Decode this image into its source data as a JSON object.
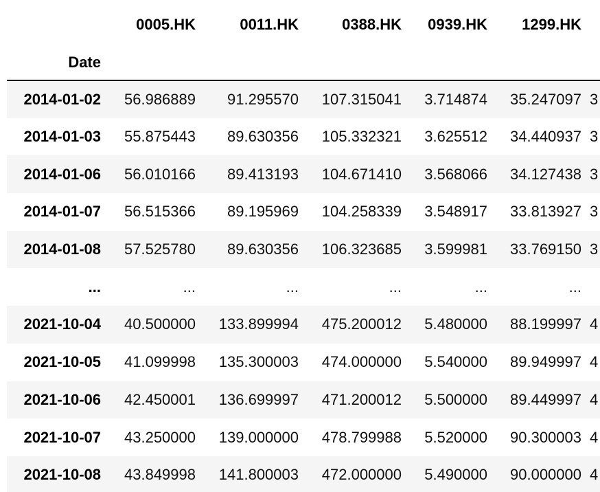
{
  "table": {
    "columns": [
      "0005.HK",
      "0011.HK",
      "0388.HK",
      "0939.HK",
      "1299.HK"
    ],
    "index_name": "Date",
    "rows": [
      {
        "index": "2014-01-02",
        "values": [
          "56.986889",
          "91.295570",
          "107.315041",
          "3.714874",
          "35.247097"
        ],
        "clipped": "3"
      },
      {
        "index": "2014-01-03",
        "values": [
          "55.875443",
          "89.630356",
          "105.332321",
          "3.625512",
          "34.440937"
        ],
        "clipped": "3"
      },
      {
        "index": "2014-01-06",
        "values": [
          "56.010166",
          "89.413193",
          "104.671410",
          "3.568066",
          "34.127438"
        ],
        "clipped": "3"
      },
      {
        "index": "2014-01-07",
        "values": [
          "56.515366",
          "89.195969",
          "104.258339",
          "3.548917",
          "33.813927"
        ],
        "clipped": "3"
      },
      {
        "index": "2014-01-08",
        "values": [
          "57.525780",
          "89.630356",
          "106.323685",
          "3.599981",
          "33.769150"
        ],
        "clipped": "3"
      },
      {
        "index": "...",
        "values": [
          "...",
          "...",
          "...",
          "...",
          "..."
        ],
        "clipped": ""
      },
      {
        "index": "2021-10-04",
        "values": [
          "40.500000",
          "133.899994",
          "475.200012",
          "5.480000",
          "88.199997"
        ],
        "clipped": "4"
      },
      {
        "index": "2021-10-05",
        "values": [
          "41.099998",
          "135.300003",
          "474.000000",
          "5.540000",
          "89.949997"
        ],
        "clipped": "4"
      },
      {
        "index": "2021-10-06",
        "values": [
          "42.450001",
          "136.699997",
          "471.200012",
          "5.500000",
          "89.449997"
        ],
        "clipped": "4"
      },
      {
        "index": "2021-10-07",
        "values": [
          "43.250000",
          "139.000000",
          "478.799988",
          "5.520000",
          "90.300003"
        ],
        "clipped": "4"
      },
      {
        "index": "2021-10-08",
        "values": [
          "43.849998",
          "141.800003",
          "472.000000",
          "5.490000",
          "90.000000"
        ],
        "clipped": "4"
      }
    ]
  }
}
